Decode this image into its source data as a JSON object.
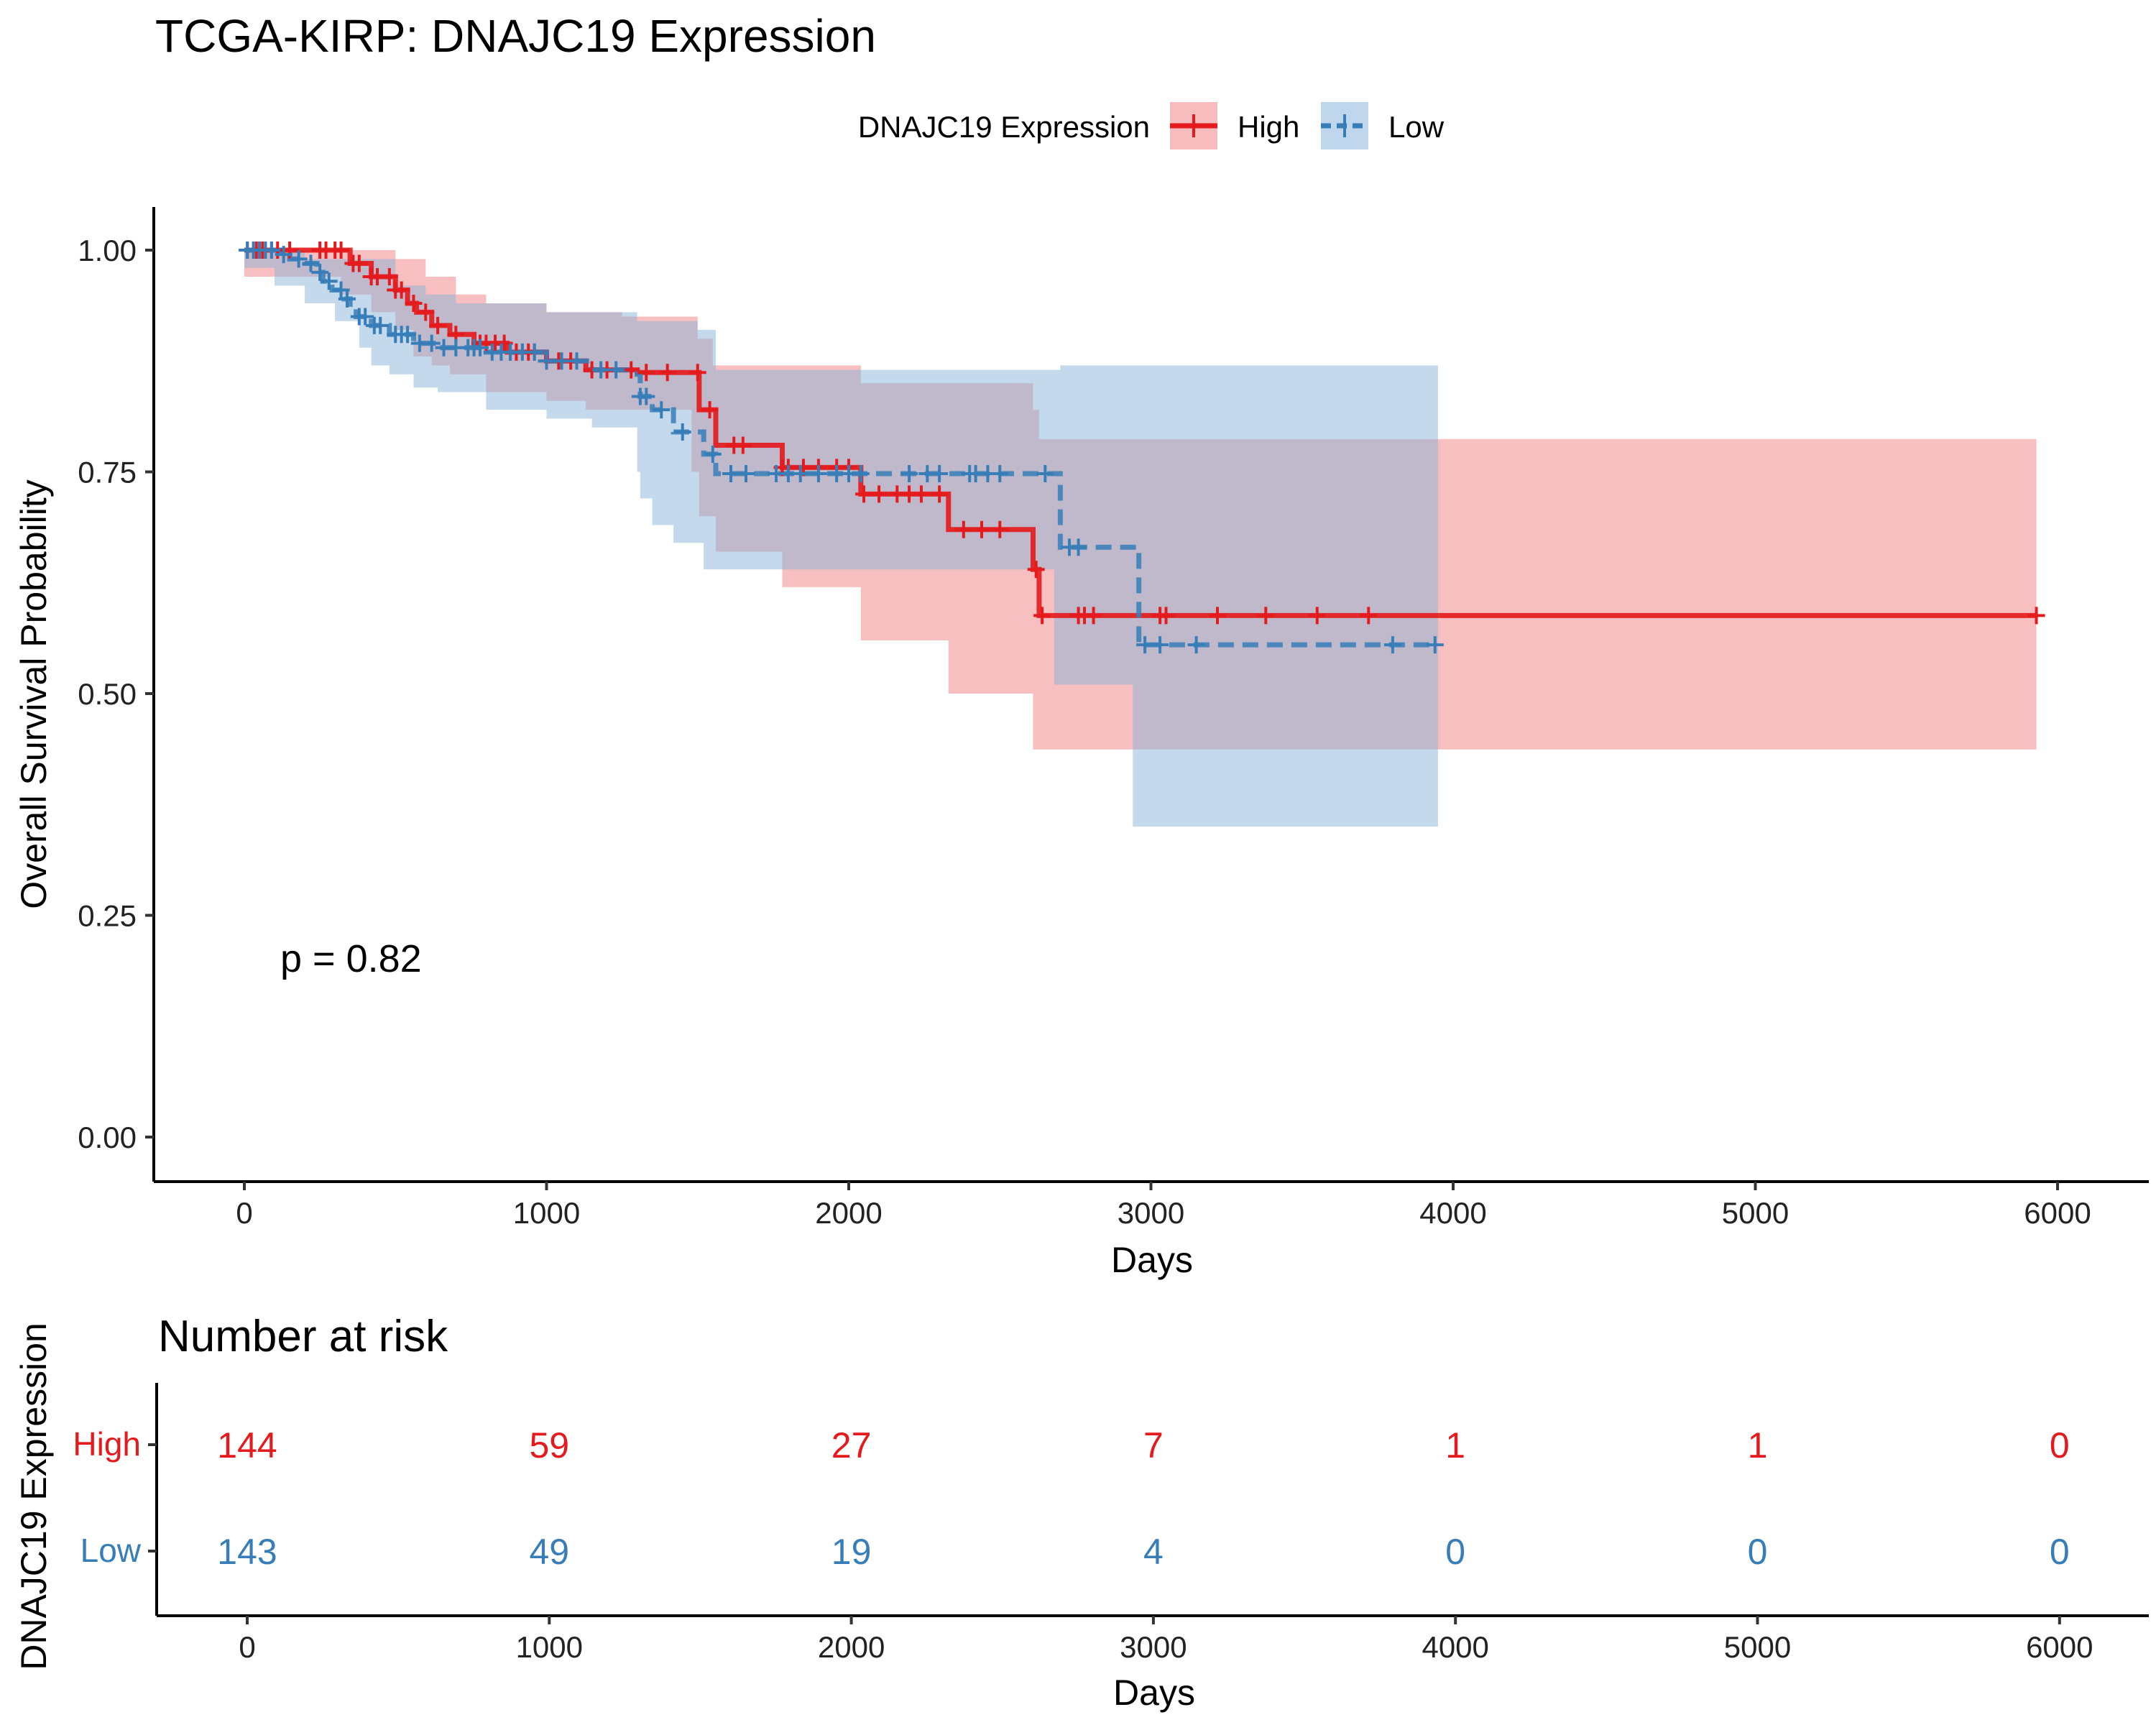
{
  "chart_data": [
    {
      "type": "line",
      "kind": "kaplan-meier",
      "title": "TCGA-KIRP: DNAJC19 Expression",
      "xlabel": "Days",
      "ylabel": "Overall Survival Probability",
      "xlim": [
        -300,
        6300
      ],
      "ylim": [
        -0.05,
        1.05
      ],
      "x_ticks": [
        "0",
        "1000",
        "2000",
        "3000",
        "4000",
        "5000",
        "6000"
      ],
      "y_ticks": [
        "0.00",
        "0.25",
        "0.50",
        "0.75",
        "1.00"
      ],
      "grid": false,
      "legend": {
        "title": "DNAJC19 Expression",
        "position": "top",
        "entries": [
          "High",
          "Low"
        ]
      },
      "annotation": "p = 0.82",
      "series": [
        {
          "name": "High",
          "color": "#E41A1C",
          "line_style": "solid",
          "steps": [
            [
              0,
              1.0
            ],
            [
              300,
              1.0
            ],
            [
              350,
              0.985
            ],
            [
              420,
              0.97
            ],
            [
              500,
              0.955
            ],
            [
              540,
              0.94
            ],
            [
              570,
              0.93
            ],
            [
              620,
              0.915
            ],
            [
              680,
              0.905
            ],
            [
              760,
              0.895
            ],
            [
              870,
              0.885
            ],
            [
              1000,
              0.875
            ],
            [
              1130,
              0.865
            ],
            [
              1300,
              0.862
            ],
            [
              1480,
              0.862
            ],
            [
              1505,
              0.82
            ],
            [
              1560,
              0.78
            ],
            [
              1780,
              0.755
            ],
            [
              2040,
              0.725
            ],
            [
              2330,
              0.685
            ],
            [
              2610,
              0.64
            ],
            [
              2630,
              0.588
            ],
            [
              5930,
              0.588
            ]
          ],
          "ci_upper": [
            [
              0,
              1.0
            ],
            [
              320,
              1.0
            ],
            [
              500,
              0.99
            ],
            [
              600,
              0.97
            ],
            [
              700,
              0.95
            ],
            [
              800,
              0.94
            ],
            [
              1000,
              0.93
            ],
            [
              1250,
              0.925
            ],
            [
              1500,
              0.9
            ],
            [
              1550,
              0.87
            ],
            [
              1780,
              0.87
            ],
            [
              2040,
              0.85
            ],
            [
              2330,
              0.85
            ],
            [
              2610,
              0.82
            ],
            [
              2630,
              0.787
            ],
            [
              5930,
              0.787
            ]
          ],
          "ci_lower": [
            [
              0,
              1.0
            ],
            [
              320,
              0.97
            ],
            [
              420,
              0.95
            ],
            [
              500,
              0.93
            ],
            [
              560,
              0.91
            ],
            [
              620,
              0.88
            ],
            [
              680,
              0.87
            ],
            [
              800,
              0.86
            ],
            [
              1000,
              0.84
            ],
            [
              1130,
              0.83
            ],
            [
              1300,
              0.82
            ],
            [
              1480,
              0.82
            ],
            [
              1505,
              0.75
            ],
            [
              1560,
              0.7
            ],
            [
              1780,
              0.66
            ],
            [
              2040,
              0.62
            ],
            [
              2330,
              0.56
            ],
            [
              2610,
              0.5
            ],
            [
              2630,
              0.437
            ],
            [
              5930,
              0.437
            ]
          ],
          "censor_x": [
            10,
            40,
            60,
            90,
            110,
            150,
            250,
            270,
            300,
            320,
            360,
            380,
            420,
            440,
            480,
            500,
            520,
            560,
            600,
            640,
            700,
            780,
            800,
            830,
            860,
            880,
            900,
            940,
            960,
            1000,
            1040,
            1080,
            1150,
            1200,
            1280,
            1330,
            1400,
            1500,
            1540,
            1620,
            1650,
            1780,
            1800,
            1850,
            1900,
            1960,
            2000,
            2050,
            2100,
            2160,
            2200,
            2240,
            2300,
            2380,
            2440,
            2500,
            2620,
            2640,
            2760,
            2780,
            2810,
            3030,
            3050,
            3220,
            3380,
            3550,
            3720,
            5930
          ]
        },
        {
          "name": "Low",
          "color": "#377EB8",
          "line_style": "dashed",
          "steps": [
            [
              0,
              1.0
            ],
            [
              120,
              0.995
            ],
            [
              150,
              0.99
            ],
            [
              200,
              0.985
            ],
            [
              240,
              0.975
            ],
            [
              260,
              0.965
            ],
            [
              290,
              0.955
            ],
            [
              330,
              0.945
            ],
            [
              350,
              0.935
            ],
            [
              370,
              0.925
            ],
            [
              420,
              0.915
            ],
            [
              480,
              0.905
            ],
            [
              560,
              0.895
            ],
            [
              640,
              0.89
            ],
            [
              800,
              0.885
            ],
            [
              1000,
              0.875
            ],
            [
              1150,
              0.865
            ],
            [
              1300,
              0.86
            ],
            [
              1310,
              0.835
            ],
            [
              1350,
              0.82
            ],
            [
              1420,
              0.795
            ],
            [
              1520,
              0.77
            ],
            [
              1560,
              0.748
            ],
            [
              2680,
              0.748
            ],
            [
              2700,
              0.665
            ],
            [
              2940,
              0.665
            ],
            [
              2960,
              0.555
            ],
            [
              3950,
              0.555
            ]
          ],
          "ci_upper": [
            [
              0,
              1.0
            ],
            [
              200,
              0.99
            ],
            [
              500,
              0.96
            ],
            [
              600,
              0.95
            ],
            [
              700,
              0.94
            ],
            [
              1000,
              0.93
            ],
            [
              1300,
              0.92
            ],
            [
              1500,
              0.91
            ],
            [
              1560,
              0.865
            ],
            [
              2040,
              0.865
            ],
            [
              2680,
              0.865
            ],
            [
              2700,
              0.87
            ],
            [
              2940,
              0.87
            ],
            [
              2960,
              0.87
            ],
            [
              3950,
              0.87
            ]
          ],
          "ci_lower": [
            [
              0,
              1.0
            ],
            [
              100,
              0.98
            ],
            [
              200,
              0.96
            ],
            [
              300,
              0.94
            ],
            [
              380,
              0.92
            ],
            [
              420,
              0.89
            ],
            [
              480,
              0.87
            ],
            [
              560,
              0.86
            ],
            [
              640,
              0.845
            ],
            [
              800,
              0.84
            ],
            [
              1000,
              0.82
            ],
            [
              1150,
              0.81
            ],
            [
              1300,
              0.8
            ],
            [
              1310,
              0.75
            ],
            [
              1350,
              0.72
            ],
            [
              1420,
              0.69
            ],
            [
              1520,
              0.67
            ],
            [
              1560,
              0.64
            ],
            [
              2680,
              0.64
            ],
            [
              2700,
              0.51
            ],
            [
              2940,
              0.51
            ],
            [
              2960,
              0.35
            ],
            [
              3950,
              0.35
            ]
          ],
          "censor_x": [
            10,
            30,
            50,
            70,
            90,
            130,
            180,
            220,
            250,
            280,
            320,
            340,
            380,
            400,
            430,
            450,
            500,
            520,
            540,
            580,
            620,
            660,
            700,
            740,
            760,
            780,
            820,
            850,
            880,
            920,
            960,
            1000,
            1050,
            1100,
            1180,
            1230,
            1310,
            1330,
            1380,
            1450,
            1550,
            1610,
            1660,
            1760,
            1800,
            1840,
            1900,
            1960,
            2000,
            2040,
            2200,
            2260,
            2300,
            2400,
            2420,
            2460,
            2500,
            2650,
            2730,
            2760,
            2980,
            3030,
            3150,
            3800,
            3940
          ]
        }
      ]
    },
    {
      "type": "table",
      "title": "Number at risk",
      "xlabel": "Days",
      "ylabel": "DNAJC19 Expression",
      "x_ticks": [
        "0",
        "1000",
        "2000",
        "3000",
        "4000",
        "5000",
        "6000"
      ],
      "columns": [
        0,
        1000,
        2000,
        3000,
        4000,
        5000,
        6000
      ],
      "rows": [
        {
          "name": "High",
          "color": "#E41A1C",
          "values": [
            "144",
            "59",
            "27",
            "7",
            "1",
            "1",
            "0"
          ]
        },
        {
          "name": "Low",
          "color": "#377EB8",
          "values": [
            "143",
            "49",
            "19",
            "4",
            "0",
            "0",
            "0"
          ]
        }
      ]
    }
  ]
}
